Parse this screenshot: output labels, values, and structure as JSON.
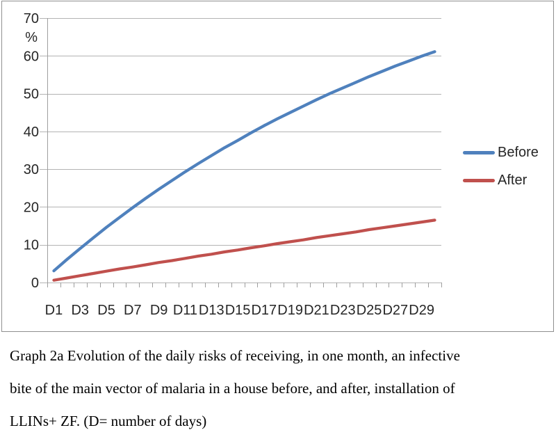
{
  "figure": {
    "caption_lines": [
      "Graph 2a Evolution of the daily risks of receiving, in one month, an infective",
      "bite of the main vector of malaria in a house before, and after, installation of",
      "LLINs+ ZF. (D= number of days)"
    ]
  },
  "chart_data": {
    "type": "line",
    "title": "",
    "ylabel": "%",
    "ylim": [
      0,
      70
    ],
    "y_ticks": [
      0,
      10,
      20,
      30,
      40,
      50,
      60,
      70
    ],
    "x_tick_labels": [
      "D1",
      "D3",
      "D5",
      "D7",
      "D9",
      "D11",
      "D13",
      "D15",
      "D17",
      "D19",
      "D21",
      "D23",
      "D25",
      "D27",
      "D29"
    ],
    "n_days": 30,
    "x_range_days": [
      1,
      30
    ],
    "grid": true,
    "legend_position": "right-outside",
    "colors": {
      "before_line": "#4F81BD",
      "after_line": "#C0504D",
      "gridline": "#b3b3b3",
      "axis": "#9e9e9e",
      "frame": "#8f8f8f",
      "text": "#262626"
    },
    "series": [
      {
        "name": "Before",
        "color": "#4F81BD",
        "values": [
          3.1,
          6.1,
          9.0,
          11.8,
          14.6,
          17.2,
          19.8,
          22.3,
          24.7,
          27.0,
          29.3,
          31.5,
          33.6,
          35.7,
          37.6,
          39.6,
          41.5,
          43.3,
          45.0,
          46.7,
          48.4,
          50.0,
          51.5,
          53.0,
          54.5,
          55.9,
          57.3,
          58.6,
          59.9,
          61.1
        ]
      },
      {
        "name": "After",
        "color": "#C0504D",
        "values": [
          0.6,
          1.2,
          1.8,
          2.4,
          3.0,
          3.6,
          4.1,
          4.7,
          5.3,
          5.8,
          6.4,
          7.0,
          7.5,
          8.1,
          8.6,
          9.2,
          9.7,
          10.3,
          10.8,
          11.3,
          11.9,
          12.4,
          12.9,
          13.4,
          14.0,
          14.5,
          15.0,
          15.5,
          16.0,
          16.5
        ]
      }
    ]
  }
}
